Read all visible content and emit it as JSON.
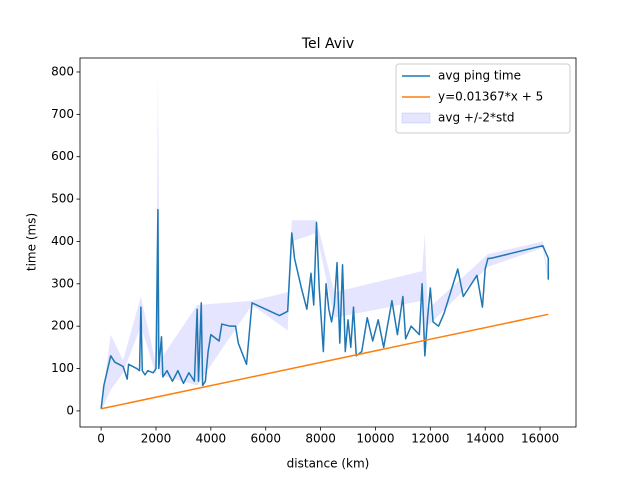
{
  "chart_data": {
    "type": "line",
    "title": "Tel Aviv",
    "x_label": "distance (km)",
    "y_label": "time (ms)",
    "xlim": [
      -770,
      17310
    ],
    "ylim": [
      -38,
      833
    ],
    "xticks": [
      0,
      2000,
      4000,
      6000,
      8000,
      10000,
      12000,
      14000,
      16000
    ],
    "yticks": [
      0,
      100,
      200,
      300,
      400,
      500,
      600,
      700,
      800
    ],
    "legend": "upper right",
    "series": [
      {
        "name": "avg ping time",
        "color": "#1f77b4",
        "x": [
          0,
          100,
          350,
          500,
          800,
          950,
          1000,
          1300,
          1400,
          1450,
          1500,
          1600,
          1700,
          1900,
          2000,
          2070,
          2100,
          2200,
          2250,
          2400,
          2600,
          2800,
          3000,
          3200,
          3400,
          3500,
          3550,
          3650,
          3700,
          3800,
          3900,
          4000,
          4200,
          4300,
          4400,
          4700,
          4900,
          5000,
          5300,
          5500,
          6500,
          6800,
          6950,
          7050,
          7300,
          7500,
          7650,
          7750,
          7850,
          7950,
          8100,
          8200,
          8300,
          8400,
          8500,
          8600,
          8700,
          8800,
          8900,
          9000,
          9100,
          9200,
          9300,
          9500,
          9700,
          9900,
          10100,
          10300,
          10600,
          10800,
          11000,
          11100,
          11300,
          11600,
          11700,
          11800,
          11900,
          12000,
          12100,
          12300,
          12500,
          13000,
          13200,
          13700,
          13900,
          14000,
          14100,
          14200,
          16100,
          16300,
          16300
        ],
        "values": [
          5,
          60,
          130,
          115,
          105,
          75,
          110,
          100,
          95,
          245,
          95,
          85,
          95,
          90,
          100,
          475,
          100,
          175,
          80,
          95,
          70,
          95,
          65,
          90,
          70,
          240,
          70,
          255,
          60,
          70,
          140,
          180,
          170,
          165,
          205,
          200,
          200,
          160,
          110,
          255,
          225,
          235,
          420,
          360,
          290,
          240,
          325,
          250,
          445,
          290,
          140,
          300,
          240,
          210,
          250,
          350,
          160,
          345,
          140,
          215,
          150,
          245,
          130,
          140,
          220,
          165,
          215,
          150,
          260,
          180,
          270,
          170,
          200,
          180,
          300,
          130,
          220,
          290,
          210,
          200,
          230,
          335,
          270,
          320,
          245,
          335,
          360,
          360,
          390,
          360,
          310
        ]
      },
      {
        "name": "y=0.01367*x + 5",
        "color": "#ff7f0e",
        "x": [
          0,
          16300
        ],
        "values": [
          5,
          228
        ]
      }
    ],
    "band": {
      "name": "avg +/-2*std",
      "color": "#0000ff",
      "x": [
        0,
        350,
        800,
        1450,
        2000,
        2070,
        2150,
        3500,
        5500,
        6800,
        6950,
        7850,
        8500,
        11700,
        11800,
        11900,
        14100,
        16100,
        16300
      ],
      "lower": [
        0,
        50,
        90,
        200,
        85,
        150,
        85,
        60,
        250,
        190,
        400,
        420,
        220,
        260,
        150,
        200,
        340,
        385,
        300
      ],
      "upper": [
        10,
        180,
        120,
        270,
        110,
        795,
        120,
        250,
        260,
        280,
        450,
        450,
        280,
        330,
        420,
        240,
        370,
        400,
        320
      ]
    }
  }
}
